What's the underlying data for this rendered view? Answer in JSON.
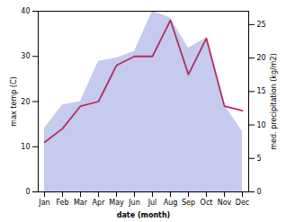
{
  "chart_data": {
    "type": "line",
    "categories": [
      "Jan",
      "Feb",
      "Mar",
      "Apr",
      "May",
      "Jun",
      "Jul",
      "Aug",
      "Sep",
      "Oct",
      "Nov",
      "Dec"
    ],
    "series": [
      {
        "type": "area",
        "axis": "y2",
        "color": "#c5caee",
        "values": [
          9.5,
          13,
          13.5,
          19.5,
          20,
          21,
          27,
          26,
          21.5,
          23,
          13,
          9
        ]
      },
      {
        "type": "line",
        "color": "#b03060",
        "values": [
          11,
          14,
          19,
          20,
          28,
          30,
          30,
          38,
          26,
          34,
          19,
          18
        ]
      }
    ],
    "xlabel": "date (month)",
    "ylabel": "max temp (C)",
    "y2label": "med. precipitation (kg/m2)",
    "ylim": [
      0,
      40
    ],
    "yticks": [
      0,
      10,
      20,
      30,
      40
    ],
    "y2lim": [
      0,
      27
    ],
    "y2ticks": [
      0,
      5,
      10,
      15,
      20,
      25
    ],
    "grid": false
  }
}
